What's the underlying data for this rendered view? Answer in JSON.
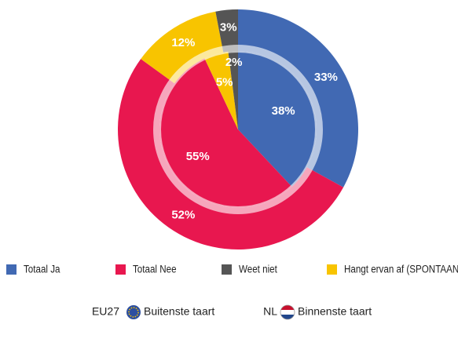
{
  "chart_data": {
    "type": "nested-pie",
    "categories": [
      "Totaal Ja",
      "Totaal Nee",
      "Weet niet",
      "Hangt ervan af (SPONTAAN)"
    ],
    "colors": [
      "#4169b3",
      "#e8174f",
      "#555555",
      "#f8c400"
    ],
    "series": [
      {
        "name": "EU27",
        "ring": "Buitenste taart",
        "values": [
          33,
          52,
          3,
          12
        ],
        "value_labels": [
          "33%",
          "52%",
          "3%",
          "12%"
        ]
      },
      {
        "name": "NL",
        "ring": "Binnenste taart",
        "values": [
          38,
          55,
          2,
          5
        ],
        "value_labels": [
          "38%",
          "55%",
          "2%",
          "5%"
        ]
      }
    ]
  }
}
